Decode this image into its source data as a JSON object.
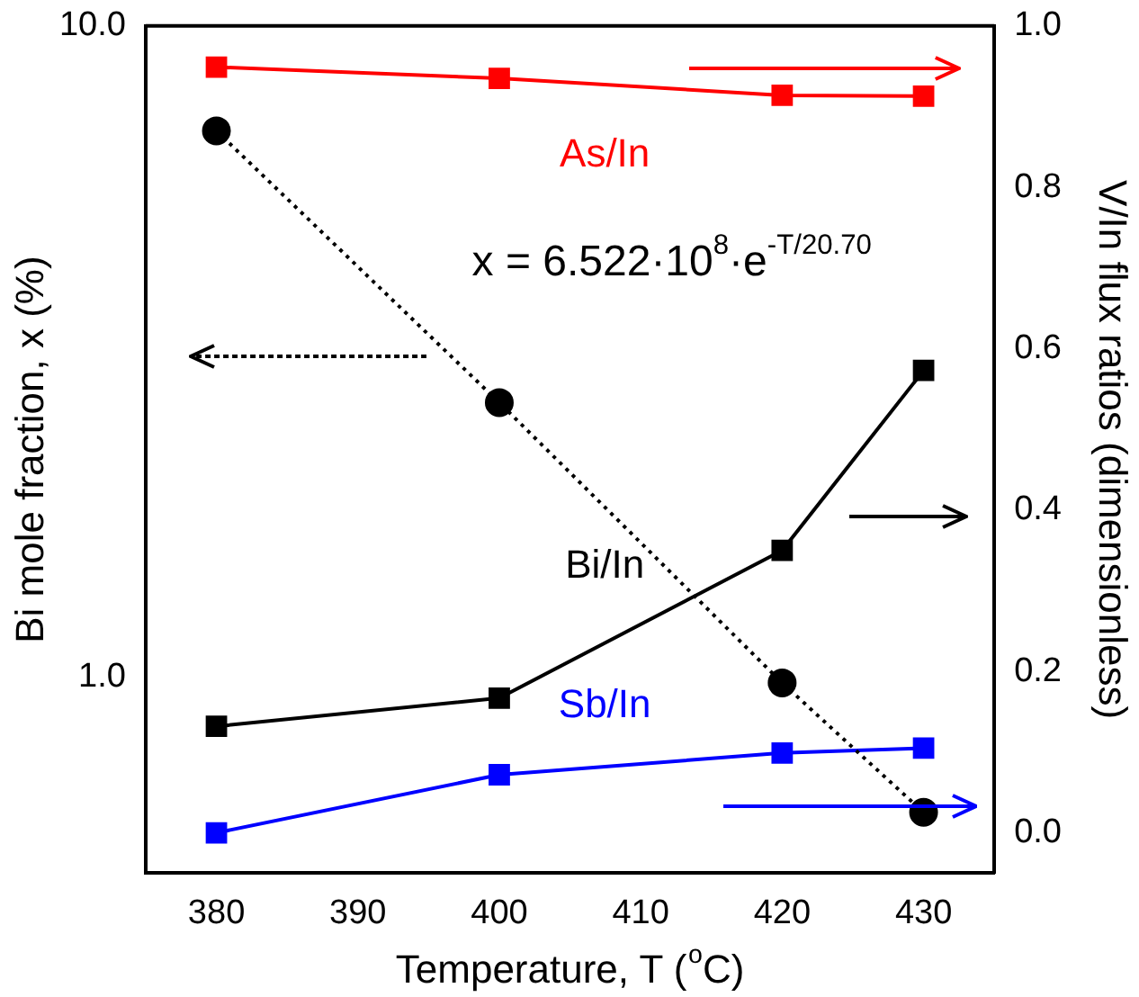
{
  "chart_data": {
    "type": "line",
    "xlabel": "Temperature, T ($^{o}$C)",
    "ylabel": "Bi mole fraction, x (%)",
    "y2label": "V/In flux ratios (dimensionless)",
    "x": [
      380,
      400,
      420,
      430
    ],
    "series": [
      {
        "color": "#000000",
        "values": [
          6.9,
          2.64,
          0.98,
          0.62
        ],
        "marker": "circle",
        "line_style": "dotted"
      },
      {
        "name": "As/In",
        "color": "#ff0000",
        "values": [
          0.949,
          0.935,
          0.914,
          0.913
        ],
        "axis": "y2",
        "marker": "square",
        "line_style": "solid"
      },
      {
        "name": "Bi/In",
        "color": "#000000",
        "values": [
          0.132,
          0.167,
          0.35,
          0.573
        ],
        "axis": "y2",
        "marker": "square",
        "line_style": "solid"
      },
      {
        "name": "Sb/In",
        "color": "#0000ff",
        "values": [
          0.0,
          0.072,
          0.099,
          0.105
        ],
        "axis": "y2",
        "marker": "square",
        "line_style": "solid"
      }
    ],
    "annotations": [
      "x = 6.522·10$^{8}$·e$^{-T/20.70}$"
    ],
    "log": "y",
    "grid": false,
    "legend": false,
    "xlim": [
      375,
      435
    ],
    "xticks": [
      380,
      390,
      400,
      410,
      420,
      430
    ],
    "ylim": [
      0.5,
      10
    ],
    "yticks": [
      {
        "value": 1,
        "label": "1.0"
      },
      {
        "value": 10,
        "label": "10.0"
      }
    ],
    "y2lim": [
      -0.05,
      1.0
    ],
    "y2ticks": [
      {
        "value": 0,
        "label": "0.0"
      },
      {
        "value": 0.2,
        "label": "0.2"
      },
      {
        "value": 0.4,
        "label": "0.4"
      },
      {
        "value": 0.6,
        "label": "0.6"
      },
      {
        "value": 0.8,
        "label": "0.8"
      },
      {
        "value": 1,
        "label": "1.0"
      }
    ]
  }
}
